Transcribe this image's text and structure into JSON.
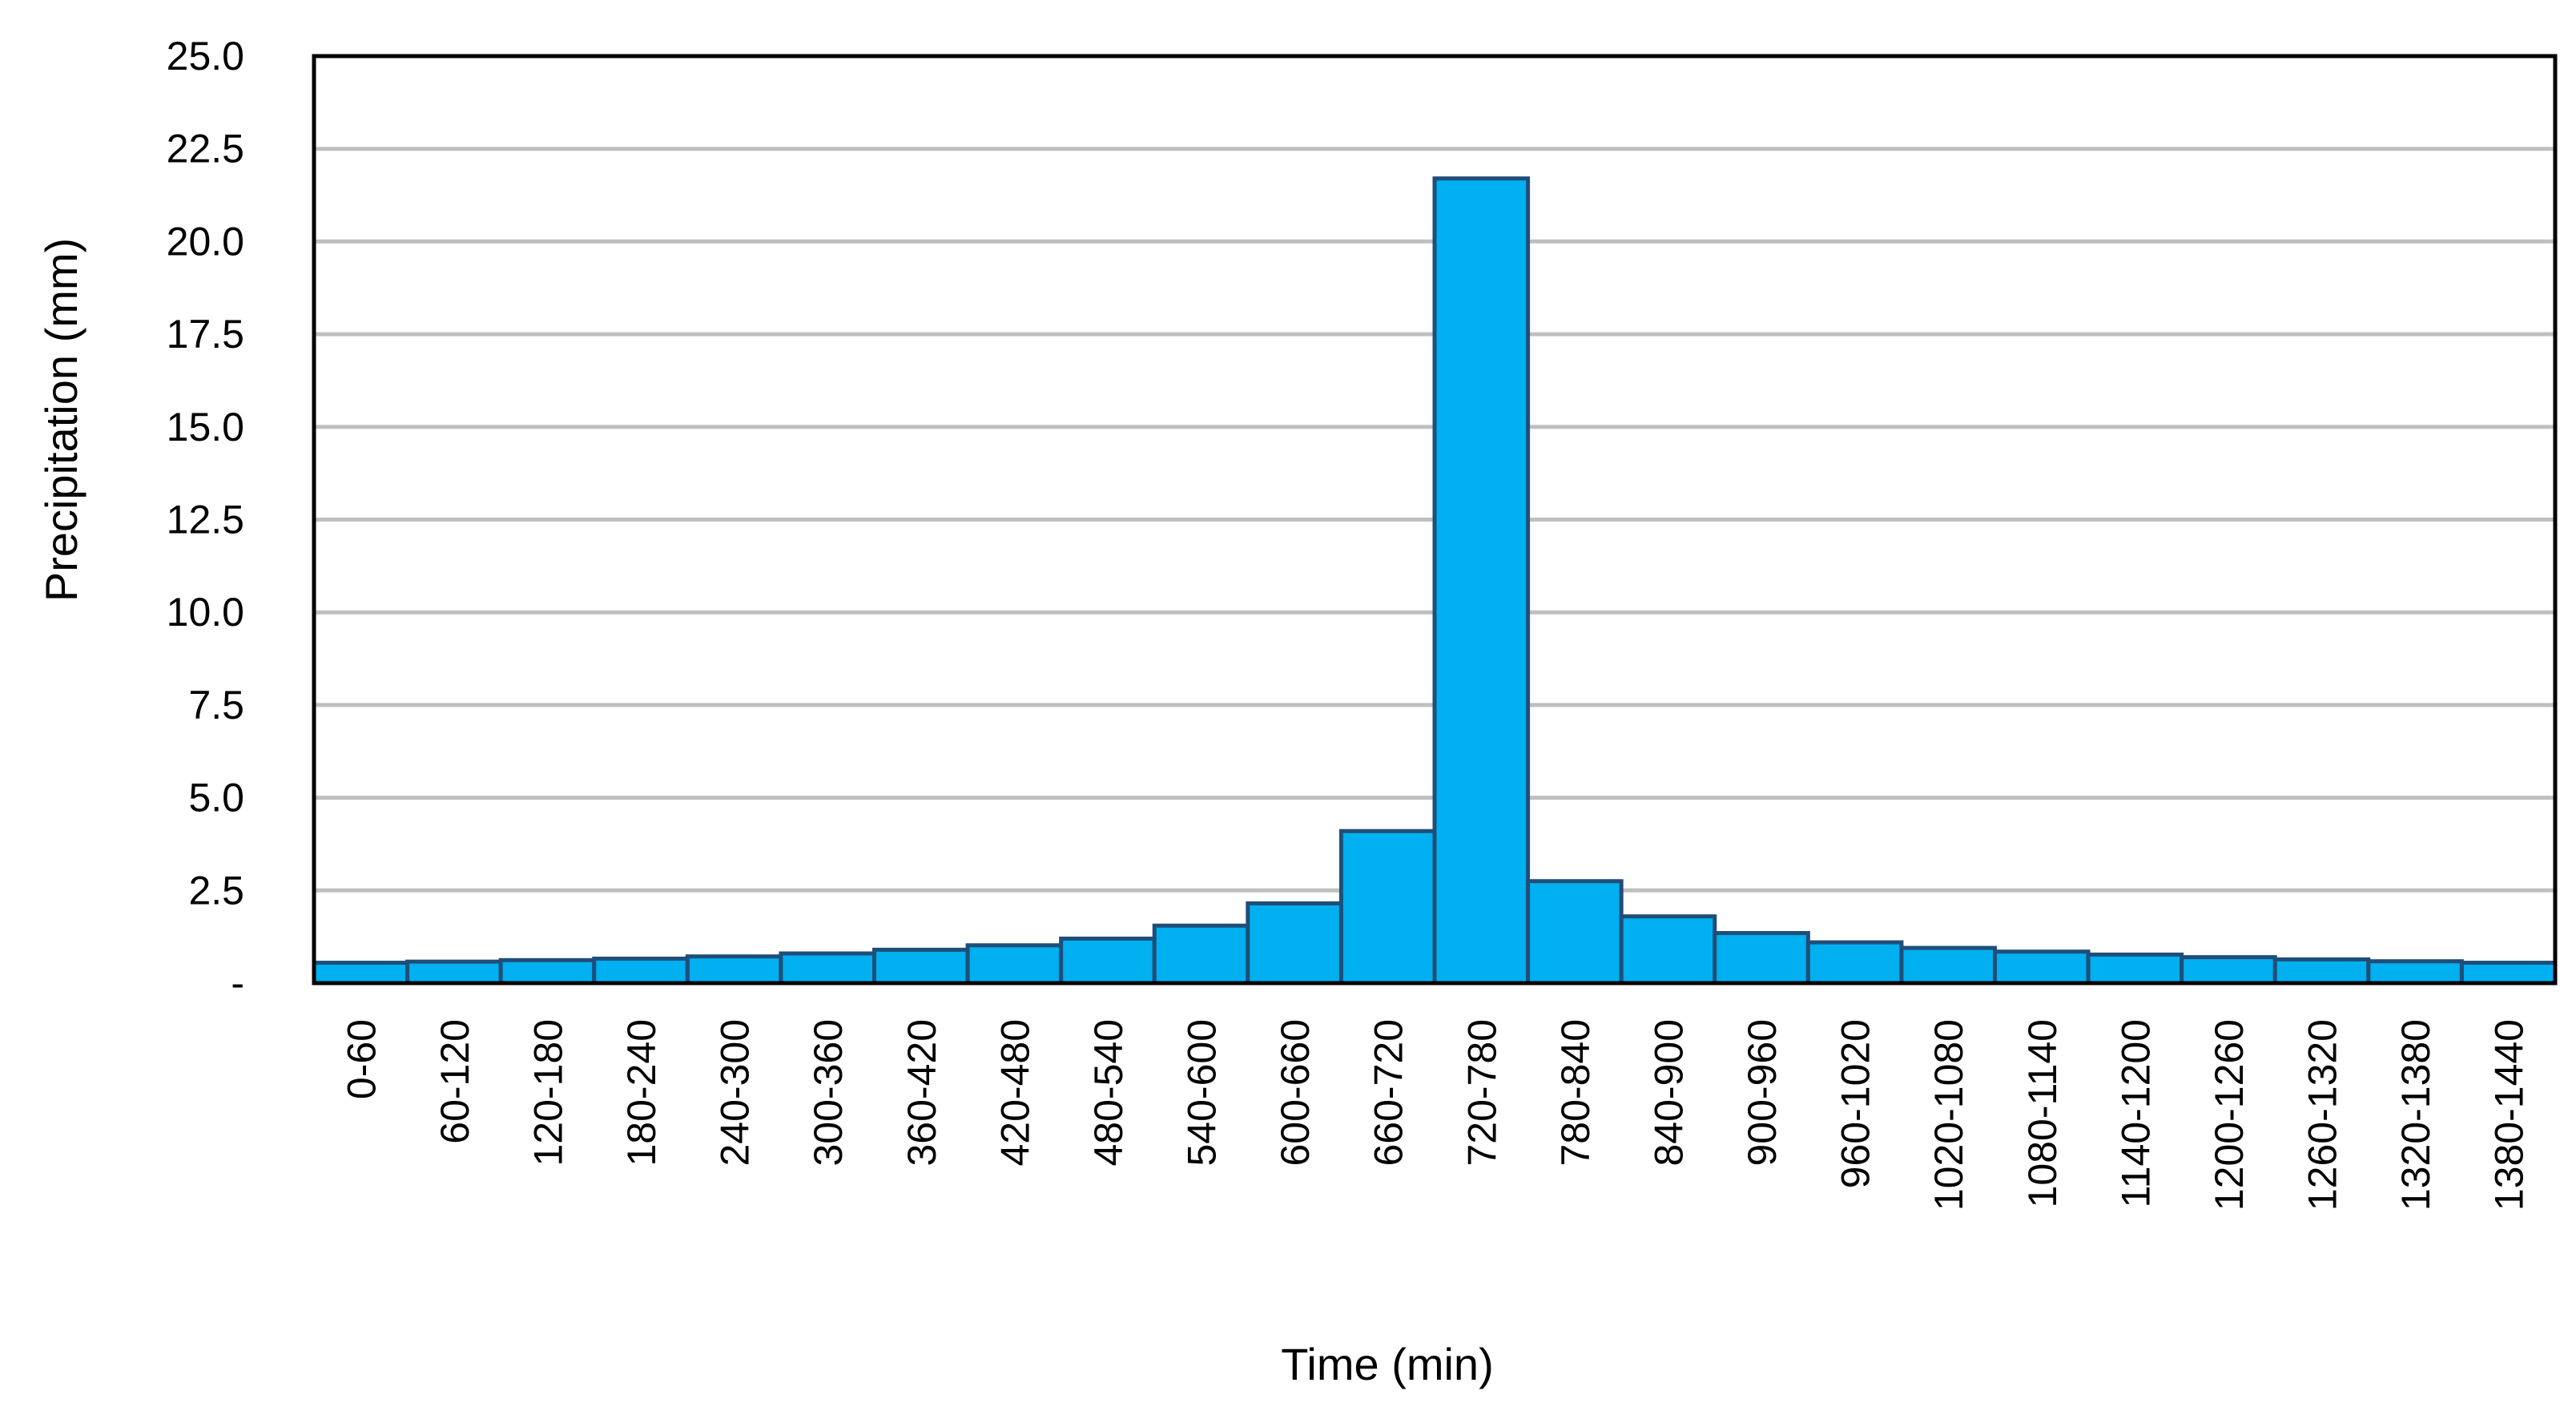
{
  "chart_data": {
    "type": "bar",
    "title": "",
    "xlabel": "Time (min)",
    "ylabel": "Precipitation (mm)",
    "ylim": [
      0,
      25
    ],
    "yticks": [
      "-",
      "2.5",
      "5.0",
      "7.5",
      "10.0",
      "12.5",
      "15.0",
      "17.5",
      "20.0",
      "22.5",
      "25.0"
    ],
    "ytick_values": [
      0,
      2.5,
      5,
      7.5,
      10,
      12.5,
      15,
      17.5,
      20,
      22.5,
      25
    ],
    "grid": true,
    "legend": "none",
    "categories": [
      "0-60",
      "60-120",
      "120-180",
      "180-240",
      "240-300",
      "300-360",
      "360-420",
      "420-480",
      "480-540",
      "540-600",
      "600-660",
      "660-720",
      "720-780",
      "780-840",
      "840-900",
      "900-960",
      "960-1020",
      "1020-1080",
      "1080-1140",
      "1140-1200",
      "1200-1260",
      "1260-1320",
      "1320-1380",
      "1380-1440"
    ],
    "values": [
      0.55,
      0.58,
      0.62,
      0.66,
      0.72,
      0.8,
      0.9,
      1.02,
      1.2,
      1.55,
      2.15,
      4.1,
      21.7,
      2.75,
      1.8,
      1.35,
      1.1,
      0.95,
      0.85,
      0.77,
      0.7,
      0.64,
      0.59,
      0.55
    ],
    "colors": {
      "bar_fill": "#00b0f0",
      "bar_stroke": "#1f4e79",
      "grid": "#bfbfbf",
      "axis": "#000000"
    }
  }
}
